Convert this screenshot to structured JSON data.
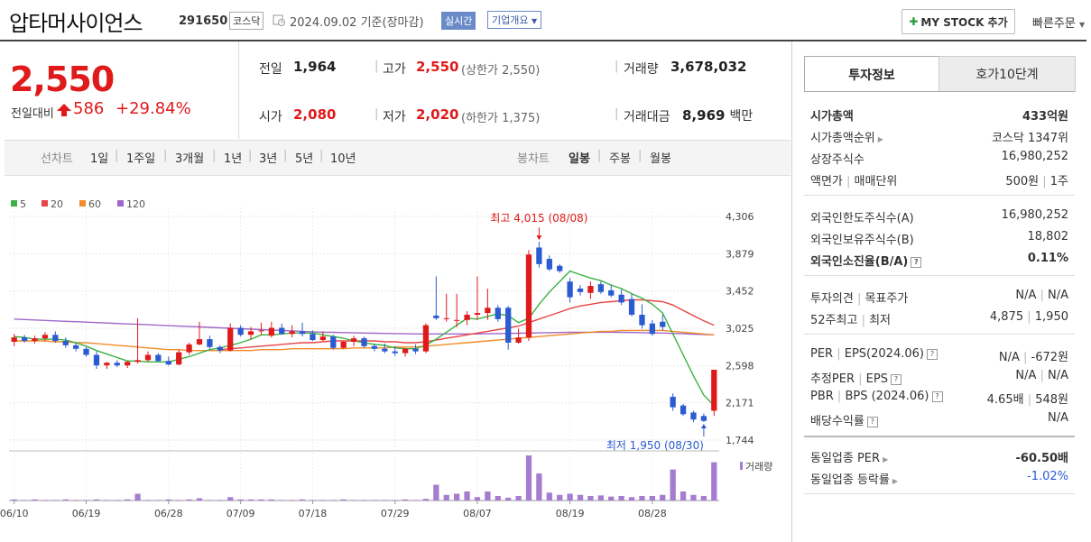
{
  "header": {
    "company_name": "압타머사이언스",
    "code": "291650",
    "market": "코스닥",
    "date": "2024.09.02",
    "basis": "기준(장마감)",
    "realtime_label": "실시간",
    "company_info_label": "기업개요",
    "mystock_label": "MY STOCK 추가",
    "quick_order_label": "빠른주문"
  },
  "price_block": {
    "current": "2,550",
    "change_label": "전일대비",
    "change_value": "586",
    "change_pct": "+29.84%"
  },
  "metrics": {
    "prev_label": "전일",
    "prev_value": "1,964",
    "high_label": "고가",
    "high_value": "2,550",
    "high_note": "(상한가 2,550)",
    "volume_label": "거래량",
    "volume_value": "3,678,032",
    "open_label": "시가",
    "open_value": "2,080",
    "low_label": "저가",
    "low_value": "2,020",
    "low_note": "(하한가 1,375)",
    "amount_label": "거래대금",
    "amount_value": "8,969",
    "amount_unit": "백만"
  },
  "period_bar": {
    "line_chart_label": "선차트",
    "periods": [
      "1일",
      "1주일",
      "3개월",
      "1년",
      "3년",
      "5년",
      "10년"
    ],
    "candle_label": "봉차트",
    "candle_periods": [
      "일봉",
      "주봉",
      "월봉"
    ],
    "candle_active": "일봉"
  },
  "chart_data": {
    "type": "candlestick",
    "legend": [
      {
        "name": "5",
        "color": "#3cb043"
      },
      {
        "name": "20",
        "color": "#e84545"
      },
      {
        "name": "60",
        "color": "#f08c2a"
      },
      {
        "name": "120",
        "color": "#a067c8"
      }
    ],
    "y_ticks": [
      "4,306",
      "3,879",
      "3,452",
      "3,025",
      "2,598",
      "2,171",
      "1,744"
    ],
    "ylim": [
      1744,
      4306
    ],
    "x_ticks": [
      "06/10",
      "06/19",
      "06/28",
      "07/09",
      "07/18",
      "07/29",
      "08/07",
      "08/19",
      "08/28"
    ],
    "high_annotation": "최고 4,015 (08/08)",
    "low_annotation": "최저 1,950 (08/30)",
    "volume_label": "거래량",
    "colors": {
      "up": "#e01a1a",
      "down": "#2b5bd1",
      "volume": "#a67cd0"
    },
    "candles": [
      {
        "o": 2870,
        "h": 2960,
        "l": 2820,
        "c": 2920
      },
      {
        "o": 2920,
        "h": 2950,
        "l": 2860,
        "c": 2880
      },
      {
        "o": 2880,
        "h": 2940,
        "l": 2850,
        "c": 2910
      },
      {
        "o": 2910,
        "h": 2980,
        "l": 2880,
        "c": 2950
      },
      {
        "o": 2950,
        "h": 2990,
        "l": 2860,
        "c": 2880
      },
      {
        "o": 2880,
        "h": 2920,
        "l": 2800,
        "c": 2830
      },
      {
        "o": 2830,
        "h": 2860,
        "l": 2760,
        "c": 2790
      },
      {
        "o": 2790,
        "h": 2810,
        "l": 2700,
        "c": 2720
      },
      {
        "o": 2720,
        "h": 2760,
        "l": 2560,
        "c": 2600
      },
      {
        "o": 2600,
        "h": 2640,
        "l": 2560,
        "c": 2630
      },
      {
        "o": 2630,
        "h": 2660,
        "l": 2580,
        "c": 2600
      },
      {
        "o": 2600,
        "h": 2650,
        "l": 2570,
        "c": 2640
      },
      {
        "o": 2640,
        "h": 3140,
        "l": 2620,
        "c": 2660
      },
      {
        "o": 2660,
        "h": 2760,
        "l": 2640,
        "c": 2720
      },
      {
        "o": 2720,
        "h": 2740,
        "l": 2640,
        "c": 2650
      },
      {
        "o": 2650,
        "h": 2700,
        "l": 2600,
        "c": 2610
      },
      {
        "o": 2610,
        "h": 2780,
        "l": 2600,
        "c": 2750
      },
      {
        "o": 2750,
        "h": 2860,
        "l": 2720,
        "c": 2840
      },
      {
        "o": 2840,
        "h": 3100,
        "l": 2830,
        "c": 2900
      },
      {
        "o": 2900,
        "h": 2940,
        "l": 2790,
        "c": 2810
      },
      {
        "o": 2810,
        "h": 2830,
        "l": 2740,
        "c": 2770
      },
      {
        "o": 2770,
        "h": 3080,
        "l": 2760,
        "c": 3030
      },
      {
        "o": 3030,
        "h": 3060,
        "l": 2930,
        "c": 2950
      },
      {
        "o": 2950,
        "h": 3040,
        "l": 2900,
        "c": 2990
      },
      {
        "o": 2990,
        "h": 3090,
        "l": 2950,
        "c": 3000
      },
      {
        "o": 2940,
        "h": 3100,
        "l": 2920,
        "c": 3030
      },
      {
        "o": 3030,
        "h": 3080,
        "l": 2950,
        "c": 2960
      },
      {
        "o": 2960,
        "h": 3060,
        "l": 2920,
        "c": 2990
      },
      {
        "o": 2990,
        "h": 3090,
        "l": 2930,
        "c": 2960
      },
      {
        "o": 2960,
        "h": 3000,
        "l": 2880,
        "c": 2890
      },
      {
        "o": 2890,
        "h": 2990,
        "l": 2880,
        "c": 2930
      },
      {
        "o": 2930,
        "h": 2950,
        "l": 2780,
        "c": 2800
      },
      {
        "o": 2800,
        "h": 2880,
        "l": 2790,
        "c": 2870
      },
      {
        "o": 2870,
        "h": 2940,
        "l": 2820,
        "c": 2910
      },
      {
        "o": 2910,
        "h": 2930,
        "l": 2800,
        "c": 2820
      },
      {
        "o": 2820,
        "h": 2850,
        "l": 2760,
        "c": 2790
      },
      {
        "o": 2790,
        "h": 2850,
        "l": 2740,
        "c": 2760
      },
      {
        "o": 2760,
        "h": 2820,
        "l": 2710,
        "c": 2740
      },
      {
        "o": 2740,
        "h": 2800,
        "l": 2700,
        "c": 2790
      },
      {
        "o": 2790,
        "h": 2840,
        "l": 2730,
        "c": 2760
      },
      {
        "o": 2760,
        "h": 3080,
        "l": 2740,
        "c": 3060
      },
      {
        "o": 3170,
        "h": 3620,
        "l": 3120,
        "c": 3140
      },
      {
        "o": 3140,
        "h": 3420,
        "l": 3100,
        "c": 3140
      },
      {
        "o": 3110,
        "h": 3420,
        "l": 3040,
        "c": 3120
      },
      {
        "o": 3120,
        "h": 3220,
        "l": 3060,
        "c": 3180
      },
      {
        "o": 3180,
        "h": 3620,
        "l": 3120,
        "c": 3200
      },
      {
        "o": 3200,
        "h": 3480,
        "l": 3120,
        "c": 3260
      },
      {
        "o": 3260,
        "h": 3290,
        "l": 3100,
        "c": 3130
      },
      {
        "o": 3260,
        "h": 3280,
        "l": 2780,
        "c": 2860
      },
      {
        "o": 2860,
        "h": 3020,
        "l": 2850,
        "c": 2920
      },
      {
        "o": 2920,
        "h": 3920,
        "l": 2880,
        "c": 3870
      },
      {
        "o": 3950,
        "h": 4015,
        "l": 3720,
        "c": 3760
      },
      {
        "o": 3820,
        "h": 3860,
        "l": 3680,
        "c": 3700
      },
      {
        "o": 3740,
        "h": 3760,
        "l": 3660,
        "c": 3680
      },
      {
        "o": 3560,
        "h": 3600,
        "l": 3320,
        "c": 3380
      },
      {
        "o": 3480,
        "h": 3520,
        "l": 3400,
        "c": 3440
      },
      {
        "o": 3430,
        "h": 3560,
        "l": 3360,
        "c": 3510
      },
      {
        "o": 3530,
        "h": 3560,
        "l": 3420,
        "c": 3440
      },
      {
        "o": 3460,
        "h": 3520,
        "l": 3380,
        "c": 3400
      },
      {
        "o": 3410,
        "h": 3470,
        "l": 3290,
        "c": 3320
      },
      {
        "o": 3360,
        "h": 3420,
        "l": 3160,
        "c": 3180
      },
      {
        "o": 3180,
        "h": 3300,
        "l": 3020,
        "c": 3060
      },
      {
        "o": 3080,
        "h": 3120,
        "l": 2940,
        "c": 2960
      },
      {
        "o": 3100,
        "h": 3180,
        "l": 3000,
        "c": 3040
      },
      {
        "o": 2240,
        "h": 2280,
        "l": 2080,
        "c": 2120
      },
      {
        "o": 2140,
        "h": 2160,
        "l": 2020,
        "c": 2040
      },
      {
        "o": 2060,
        "h": 2080,
        "l": 1950,
        "c": 1980
      },
      {
        "o": 2020,
        "h": 2050,
        "l": 1950,
        "c": 1964
      },
      {
        "o": 2080,
        "h": 2550,
        "l": 2020,
        "c": 2550
      }
    ],
    "volumes": [
      2,
      1,
      2,
      1,
      1,
      2,
      1,
      1,
      2,
      1,
      1,
      2,
      12,
      1,
      1,
      2,
      1,
      2,
      4,
      1,
      1,
      6,
      2,
      2,
      2,
      2,
      1,
      1,
      2,
      1,
      1,
      1,
      2,
      1,
      1,
      1,
      1,
      1,
      2,
      1,
      3,
      28,
      10,
      12,
      16,
      6,
      16,
      8,
      5,
      8,
      80,
      48,
      14,
      10,
      12,
      10,
      8,
      9,
      7,
      8,
      6,
      8,
      8,
      10,
      55,
      16,
      10,
      8,
      68
    ],
    "ma5": [
      2930,
      2920,
      2900,
      2900,
      2900,
      2890,
      2860,
      2820,
      2770,
      2730,
      2690,
      2650,
      2650,
      2640,
      2640,
      2640,
      2670,
      2700,
      2740,
      2780,
      2800,
      2830,
      2860,
      2900,
      2950,
      2950,
      2960,
      2970,
      2970,
      2970,
      2950,
      2930,
      2910,
      2880,
      2860,
      2840,
      2830,
      2800,
      2790,
      2790,
      2830,
      2900,
      2980,
      3060,
      3140,
      3130,
      3160,
      3190,
      3170,
      3090,
      3140,
      3300,
      3440,
      3560,
      3680,
      3640,
      3600,
      3570,
      3520,
      3480,
      3420,
      3370,
      3300,
      3200,
      2960,
      2720,
      2480,
      2260,
      2140
    ],
    "ma20": [
      null,
      null,
      null,
      null,
      null,
      null,
      null,
      null,
      null,
      null,
      null,
      null,
      null,
      null,
      null,
      null,
      null,
      null,
      null,
      null,
      2780,
      2790,
      2800,
      2810,
      2820,
      2830,
      2840,
      2850,
      2860,
      2860,
      2870,
      2880,
      2880,
      2880,
      2880,
      2880,
      2870,
      2870,
      2860,
      2860,
      2870,
      2890,
      2910,
      2930,
      2950,
      2970,
      2990,
      3010,
      3030,
      3050,
      3090,
      3130,
      3170,
      3210,
      3250,
      3280,
      3300,
      3320,
      3330,
      3340,
      3350,
      3350,
      3340,
      3330,
      3290,
      3230,
      3170,
      3110,
      3060
    ],
    "ma60": [
      2880,
      2880,
      2880,
      2880,
      2870,
      2870,
      2860,
      2860,
      2850,
      2840,
      2830,
      2820,
      2810,
      2800,
      2790,
      2780,
      2780,
      2770,
      2770,
      2770,
      2770,
      2770,
      2770,
      2770,
      2780,
      2780,
      2780,
      2790,
      2790,
      2790,
      2790,
      2790,
      2790,
      2800,
      2800,
      2800,
      2800,
      2810,
      2810,
      2810,
      2820,
      2830,
      2840,
      2850,
      2860,
      2870,
      2880,
      2890,
      2900,
      2910,
      2920,
      2930,
      2940,
      2950,
      2960,
      2970,
      2980,
      2990,
      2990,
      3000,
      3000,
      3000,
      3000,
      3000,
      2990,
      2980,
      2970,
      2960,
      2950
    ],
    "ma120": [
      3130,
      3125,
      3120,
      3115,
      3110,
      3105,
      3100,
      3095,
      3090,
      3085,
      3080,
      3075,
      3070,
      3065,
      3060,
      3055,
      3050,
      3045,
      3040,
      3035,
      3030,
      3025,
      3020,
      3015,
      3010,
      3005,
      3000,
      2995,
      2990,
      2985,
      2980,
      2978,
      2975,
      2972,
      2970,
      2968,
      2966,
      2964,
      2962,
      2960,
      2960,
      2960,
      2960,
      2960,
      2960,
      2960,
      2962,
      2964,
      2966,
      2968,
      2970,
      2972,
      2974,
      2976,
      2978,
      2980,
      2980,
      2980,
      2980,
      2978,
      2976,
      2974,
      2972,
      2970,
      2966,
      2962,
      2958,
      2954,
      2950
    ]
  },
  "right_panel": {
    "tab_invest": "투자정보",
    "tab_orderbook": "호가10단계",
    "market_cap_label": "시가총액",
    "market_cap_value": "433억원",
    "market_cap_rank_label": "시가총액순위",
    "market_cap_rank_value": "코스닥 1347위",
    "shares_label": "상장주식수",
    "shares_value": "16,980,252",
    "par_label": "액면가",
    "unit_label": "매매단위",
    "par_value": "500원",
    "unit_value": "1주",
    "foreign_limit_label": "외국인한도주식수(A)",
    "foreign_limit_value": "16,980,252",
    "foreign_hold_label": "외국인보유주식수(B)",
    "foreign_hold_value": "18,802",
    "foreign_ratio_label": "외국인소진율(B/A)",
    "foreign_ratio_value": "0.11%",
    "opinion_label": "투자의견",
    "target_label": "목표주가",
    "opinion_value": "N/A",
    "target_value": "N/A",
    "w52_high_label": "52주최고",
    "w52_low_label": "최저",
    "w52_high_value": "4,875",
    "w52_low_value": "1,950",
    "per_label": "PER",
    "eps_label": "EPS(2024.06)",
    "per_value": "N/A",
    "eps_value": "-672원",
    "est_per_label": "추정PER",
    "est_eps_label": "EPS",
    "est_per_value": "N/A",
    "est_eps_value": "N/A",
    "pbr_label": "PBR",
    "bps_label": "BPS (2024.06)",
    "pbr_value": "4.65배",
    "bps_value": "548원",
    "dividend_label": "배당수익률",
    "dividend_value": "N/A",
    "sector_per_label": "동일업종 PER",
    "sector_per_value": "-60.50배",
    "sector_rate_label": "동일업종 등락률",
    "sector_rate_value": "-1.02%"
  }
}
